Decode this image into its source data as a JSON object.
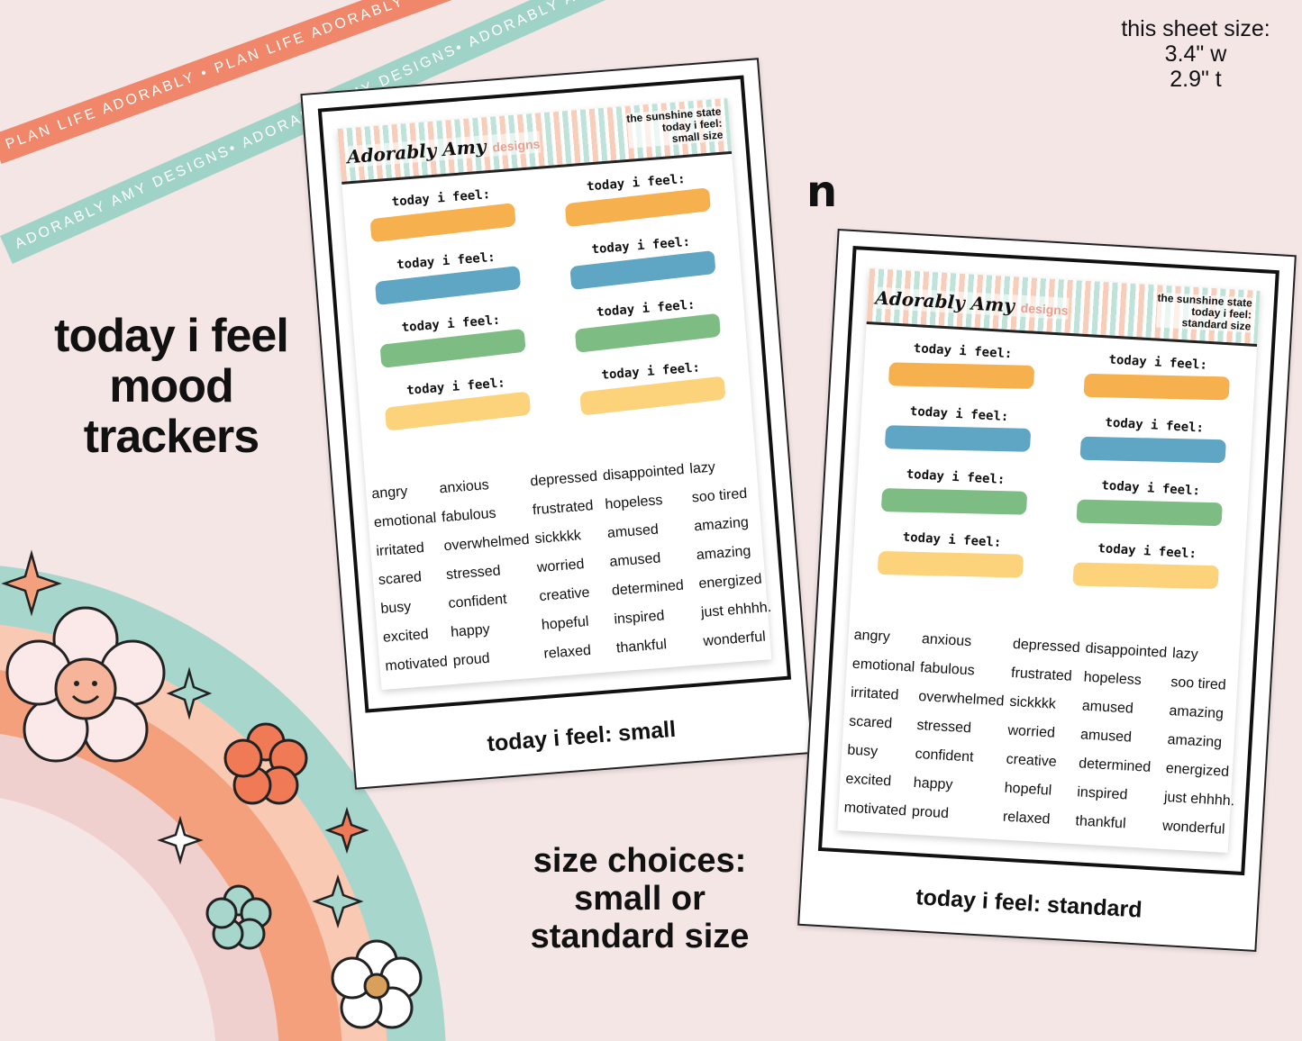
{
  "ribbons": {
    "top": "PLAN LIFE ADORABLY • PLAN LIFE ADORABLY • PLAN LIFE ADORABLY",
    "bottom": "ADORABLY AMY DESIGNS• ADORABLY AMY DESIGNS• ADORABLY AMY DESIGNS"
  },
  "headline": [
    "today i feel",
    "mood",
    "trackers"
  ],
  "size_info": [
    "this sheet size:",
    "3.4\" w",
    "2.9\" t"
  ],
  "size_choices": [
    "size choices:",
    "small or",
    "standard size"
  ],
  "separator": "n",
  "brand": {
    "name": "Adorably Amy",
    "suffix": "designs"
  },
  "sticker_label": "today i feel:",
  "strip_colors": [
    "#f6b04e",
    "#5ea6c4",
    "#7dbd84",
    "#fcd27a"
  ],
  "sheets": [
    {
      "title": [
        "the sunshine state",
        "today i feel:",
        "small size"
      ],
      "caption": "today i feel: small"
    },
    {
      "title": [
        "the sunshine state",
        "today i feel:",
        "standard size"
      ],
      "caption": "today i feel: standard"
    }
  ],
  "words": [
    "angry",
    "anxious",
    "depressed",
    "disappointed",
    "lazy",
    "emotional",
    "fabulous",
    "frustrated",
    "hopeless",
    "soo tired",
    "irritated",
    "overwhelmed",
    "sickkkk",
    "amused",
    "amazing",
    "scared",
    "stressed",
    "worried",
    "amused",
    "amazing",
    "busy",
    "confident",
    "creative",
    "determined",
    "energized",
    "excited",
    "happy",
    "hopeful",
    "inspired",
    "just ehhhh.",
    "motivated",
    "proud",
    "relaxed",
    "thankful",
    "wonderful"
  ]
}
